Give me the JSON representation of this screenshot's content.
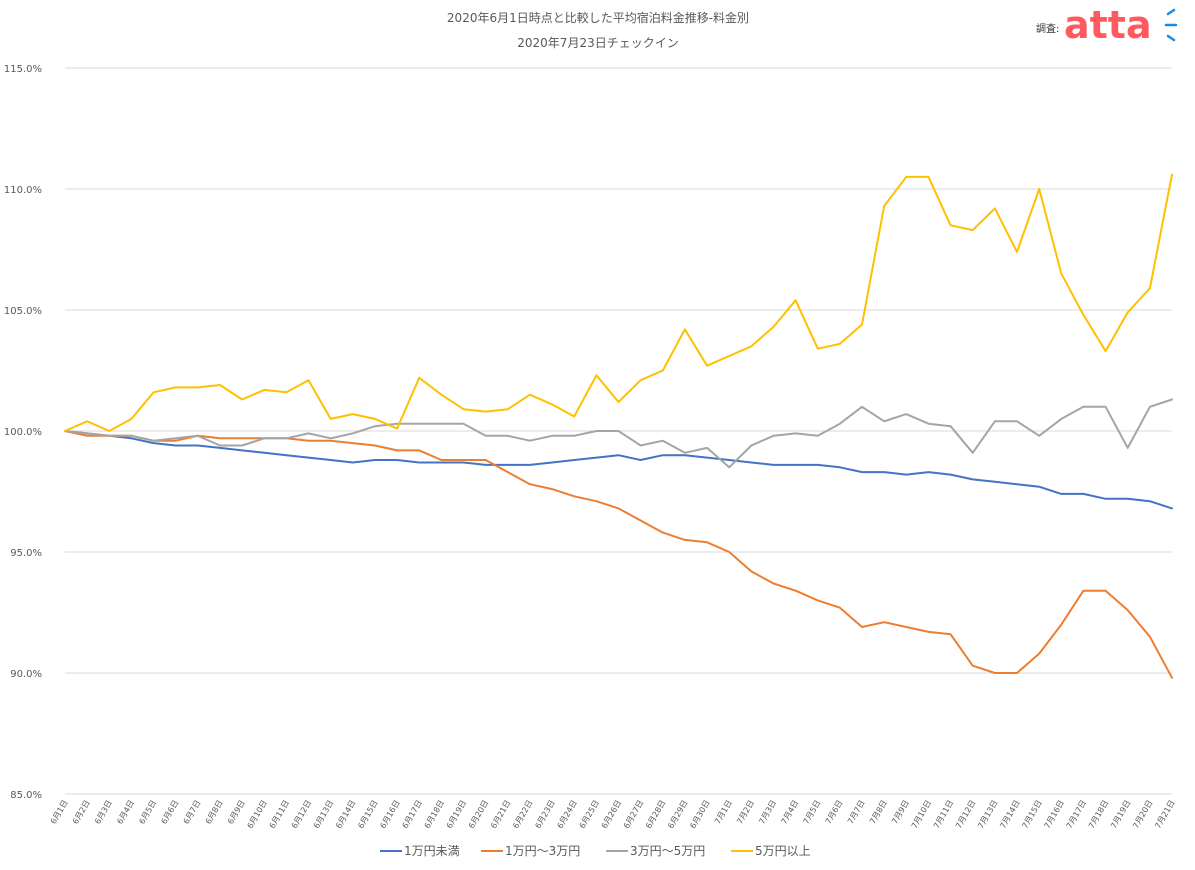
{
  "header": {
    "title": "2020年6月1日時点と比較した平均宿泊料金推移-料金別",
    "subtitle": "2020年7月23日チェックイン",
    "credit_label": "調査:",
    "brand_text": "atta",
    "brand_color": "#FF5A5F",
    "brand_accent_color": "#1E88E5"
  },
  "chart_data": {
    "type": "line",
    "title": "2020年6月1日時点と比較した平均宿泊料金推移-料金別",
    "subtitle": "2020年7月23日チェックイン",
    "xlabel": "",
    "ylabel": "",
    "ylim": [
      85.0,
      115.0
    ],
    "yticks": [
      85.0,
      90.0,
      95.0,
      100.0,
      105.0,
      110.0,
      115.0
    ],
    "ytick_labels": [
      "85.0%",
      "90.0%",
      "95.0%",
      "100.0%",
      "105.0%",
      "110.0%",
      "115.0%"
    ],
    "grid": "horizontal",
    "legend": "bottom",
    "categories": [
      "6月1日",
      "6月2日",
      "6月3日",
      "6月4日",
      "6月5日",
      "6月6日",
      "6月7日",
      "6月8日",
      "6月9日",
      "6月10日",
      "6月11日",
      "6月12日",
      "6月13日",
      "6月14日",
      "6月15日",
      "6月16日",
      "6月17日",
      "6月18日",
      "6月19日",
      "6月20日",
      "6月21日",
      "6月22日",
      "6月23日",
      "6月24日",
      "6月25日",
      "6月26日",
      "6月27日",
      "6月28日",
      "6月29日",
      "6月30日",
      "7月1日",
      "7月2日",
      "7月3日",
      "7月4日",
      "7月5日",
      "7月6日",
      "7月7日",
      "7月8日",
      "7月9日",
      "7月10日",
      "7月11日",
      "7月12日",
      "7月13日",
      "7月14日",
      "7月15日",
      "7月16日",
      "7月17日",
      "7月18日",
      "7月19日",
      "7月20日",
      "7月21日"
    ],
    "series": [
      {
        "name": "1万円未満",
        "color": "#4472C4",
        "values": [
          100.0,
          99.9,
          99.8,
          99.7,
          99.5,
          99.4,
          99.4,
          99.3,
          99.2,
          99.1,
          99.0,
          98.9,
          98.8,
          98.7,
          98.8,
          98.8,
          98.7,
          98.7,
          98.7,
          98.6,
          98.6,
          98.6,
          98.7,
          98.8,
          98.9,
          99.0,
          98.8,
          99.0,
          99.0,
          98.9,
          98.8,
          98.7,
          98.6,
          98.6,
          98.6,
          98.5,
          98.3,
          98.3,
          98.2,
          98.3,
          98.2,
          98.0,
          97.9,
          97.8,
          97.7,
          97.4,
          97.4,
          97.2,
          97.2,
          97.1,
          96.8
        ]
      },
      {
        "name": "1万円～3万円",
        "color": "#ED7D31",
        "values": [
          100.0,
          99.8,
          99.8,
          99.8,
          99.6,
          99.6,
          99.8,
          99.7,
          99.7,
          99.7,
          99.7,
          99.6,
          99.6,
          99.5,
          99.4,
          99.2,
          99.2,
          98.8,
          98.8,
          98.8,
          98.3,
          97.8,
          97.6,
          97.3,
          97.1,
          96.8,
          96.3,
          95.8,
          95.5,
          95.4,
          95.0,
          94.2,
          93.7,
          93.4,
          93.0,
          92.7,
          91.9,
          92.1,
          91.9,
          91.7,
          91.6,
          90.3,
          90.0,
          90.0,
          90.8,
          92.0,
          93.4,
          93.4,
          92.6,
          91.5,
          89.8
        ]
      },
      {
        "name": "3万円～5万円",
        "color": "#A5A5A5",
        "values": [
          100.0,
          99.9,
          99.8,
          99.8,
          99.6,
          99.7,
          99.8,
          99.4,
          99.4,
          99.7,
          99.7,
          99.9,
          99.7,
          99.9,
          100.2,
          100.3,
          100.3,
          100.3,
          100.3,
          99.8,
          99.8,
          99.6,
          99.8,
          99.8,
          100.0,
          100.0,
          99.4,
          99.6,
          99.1,
          99.3,
          98.5,
          99.4,
          99.8,
          99.9,
          99.8,
          100.3,
          101.0,
          100.4,
          100.7,
          100.3,
          100.2,
          99.1,
          100.4,
          100.4,
          99.8,
          100.5,
          101.0,
          101.0,
          99.3,
          101.0,
          101.3
        ]
      },
      {
        "name": "5万円以上",
        "color": "#FFC000",
        "values": [
          100.0,
          100.4,
          100.0,
          100.5,
          101.6,
          101.8,
          101.8,
          101.9,
          101.3,
          101.7,
          101.6,
          102.1,
          100.5,
          100.7,
          100.5,
          100.1,
          102.2,
          101.5,
          100.9,
          100.8,
          100.9,
          101.5,
          101.1,
          100.6,
          102.3,
          101.2,
          102.1,
          102.5,
          104.2,
          102.7,
          103.1,
          103.5,
          104.3,
          105.4,
          103.4,
          103.6,
          104.4,
          109.3,
          110.5,
          110.5,
          108.5,
          108.3,
          109.2,
          107.4,
          110.0,
          106.5,
          104.8,
          103.3,
          104.9,
          105.9,
          110.6
        ]
      }
    ]
  }
}
